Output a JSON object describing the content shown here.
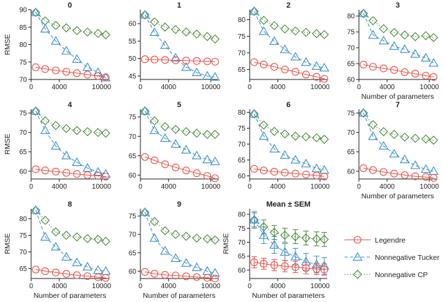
{
  "colors": {
    "legendre": "#e8534a",
    "tucker": "#3b8fc9",
    "cp": "#4a8a3a",
    "axis": "#222222"
  },
  "legend": {
    "items": [
      {
        "key": "legendre",
        "label": "Legendre",
        "marker": "circle",
        "dash": "solid"
      },
      {
        "key": "tucker",
        "label": "Nonnegative Tucker",
        "marker": "triangle",
        "dash": "dashed"
      },
      {
        "key": "cp",
        "label": "Nonnegative CP",
        "marker": "diamond",
        "dash": "dotted"
      }
    ]
  },
  "chart_data": [
    {
      "type": "line",
      "title": "0",
      "xlabel": "",
      "ylabel": "RMSE",
      "xlim": [
        0,
        11000
      ],
      "ylim": [
        70,
        90
      ],
      "xticks": [
        0,
        4000,
        10000
      ],
      "yticks": [
        70,
        75,
        80,
        85,
        90
      ],
      "x": [
        650,
        2000,
        3500,
        5000,
        6500,
        8000,
        9500,
        10600
      ],
      "series": [
        {
          "name": "Legendre",
          "values": [
            73.5,
            73.0,
            72.6,
            72.2,
            71.8,
            71.4,
            71.0,
            70.6
          ]
        },
        {
          "name": "Nonnegative Tucker",
          "values": [
            89.2,
            84.5,
            81.0,
            78.2,
            75.8,
            73.5,
            72.0,
            70.5
          ]
        },
        {
          "name": "Nonnegative CP",
          "values": [
            89.2,
            86.8,
            85.5,
            84.8,
            84.0,
            83.6,
            83.2,
            82.8
          ]
        }
      ]
    },
    {
      "type": "line",
      "title": "1",
      "xlabel": "",
      "ylabel": "",
      "xlim": [
        0,
        11000
      ],
      "ylim": [
        44,
        64
      ],
      "xticks": [
        0,
        4000,
        10000
      ],
      "yticks": [
        45,
        50,
        55,
        60
      ],
      "x": [
        650,
        2000,
        3500,
        5000,
        6500,
        8000,
        9500,
        10600
      ],
      "series": [
        {
          "name": "Legendre",
          "values": [
            49.8,
            49.7,
            49.6,
            49.5,
            49.4,
            49.3,
            49.2,
            49.1
          ]
        },
        {
          "name": "Nonnegative Tucker",
          "values": [
            62.5,
            57.5,
            53.8,
            50.2,
            47.5,
            46.0,
            45.0,
            44.7
          ]
        },
        {
          "name": "Nonnegative CP",
          "values": [
            62.5,
            60.5,
            59.0,
            58.3,
            57.6,
            57.0,
            56.3,
            55.6
          ]
        }
      ]
    },
    {
      "type": "line",
      "title": "2",
      "xlabel": "",
      "ylabel": "",
      "xlim": [
        0,
        11000
      ],
      "ylim": [
        62,
        83
      ],
      "xticks": [
        0,
        4000,
        10000
      ],
      "yticks": [
        65,
        70,
        75,
        80
      ],
      "x": [
        650,
        2000,
        3500,
        5000,
        6500,
        8000,
        9500,
        10600
      ],
      "series": [
        {
          "name": "Legendre",
          "values": [
            67.2,
            66.5,
            65.8,
            65.0,
            64.3,
            63.5,
            62.8,
            62.2
          ]
        },
        {
          "name": "Nonnegative Tucker",
          "values": [
            82.5,
            76.5,
            73.5,
            71.0,
            68.8,
            67.2,
            66.0,
            65.5
          ]
        },
        {
          "name": "Nonnegative CP",
          "values": [
            82.5,
            79.8,
            78.2,
            77.2,
            76.6,
            76.2,
            75.8,
            75.5
          ]
        }
      ]
    },
    {
      "type": "line",
      "title": "3",
      "xlabel": "Number of parameters",
      "ylabel": "",
      "xlim": [
        0,
        11000
      ],
      "ylim": [
        60,
        82
      ],
      "xticks": [
        0,
        4000,
        10000
      ],
      "yticks": [
        60,
        65,
        70,
        75,
        80
      ],
      "x": [
        650,
        2000,
        3500,
        5000,
        6500,
        8000,
        9500,
        10600
      ],
      "series": [
        {
          "name": "Legendre",
          "values": [
            64.7,
            64.0,
            63.5,
            63.0,
            62.3,
            61.8,
            61.2,
            60.8
          ]
        },
        {
          "name": "Nonnegative Tucker",
          "values": [
            80.8,
            74.0,
            72.2,
            70.5,
            69.5,
            68.0,
            66.8,
            65.2
          ]
        },
        {
          "name": "Nonnegative CP",
          "values": [
            80.8,
            78.5,
            76.0,
            74.8,
            74.0,
            73.5,
            73.8,
            73.2
          ]
        }
      ]
    },
    {
      "type": "line",
      "title": "4",
      "xlabel": "",
      "ylabel": "RMSE",
      "xlim": [
        0,
        11000
      ],
      "ylim": [
        58,
        76
      ],
      "xticks": [
        0,
        4000,
        10000
      ],
      "yticks": [
        60,
        65,
        70,
        75
      ],
      "x": [
        650,
        2000,
        3500,
        5000,
        6500,
        8000,
        9500,
        10600
      ],
      "series": [
        {
          "name": "Legendre",
          "values": [
            60.5,
            60.2,
            59.9,
            59.6,
            59.3,
            59.0,
            58.8,
            58.6
          ]
        },
        {
          "name": "Nonnegative Tucker",
          "values": [
            75.5,
            70.5,
            66.5,
            64.0,
            62.3,
            60.8,
            59.8,
            59.3
          ]
        },
        {
          "name": "Nonnegative CP",
          "values": [
            75.5,
            73.0,
            71.8,
            71.0,
            70.5,
            70.2,
            70.0,
            69.8
          ]
        }
      ]
    },
    {
      "type": "line",
      "title": "5",
      "xlabel": "",
      "ylabel": "",
      "xlim": [
        0,
        11000
      ],
      "ylim": [
        59,
        77
      ],
      "xticks": [
        0,
        4000,
        10000
      ],
      "yticks": [
        60,
        65,
        70,
        75
      ],
      "x": [
        650,
        2000,
        3500,
        5000,
        6500,
        8000,
        9500,
        10600
      ],
      "series": [
        {
          "name": "Legendre",
          "values": [
            64.7,
            63.8,
            62.8,
            62.0,
            61.2,
            60.5,
            59.8,
            59.2
          ]
        },
        {
          "name": "Nonnegative Tucker",
          "values": [
            76.5,
            71.5,
            69.5,
            68.0,
            66.5,
            65.0,
            64.0,
            63.5
          ]
        },
        {
          "name": "Nonnegative CP",
          "values": [
            76.5,
            74.0,
            72.5,
            71.8,
            71.2,
            70.8,
            70.5,
            70.5
          ]
        }
      ]
    },
    {
      "type": "line",
      "title": "6",
      "xlabel": "",
      "ylabel": "",
      "xlim": [
        0,
        11000
      ],
      "ylim": [
        59,
        81
      ],
      "xticks": [
        0,
        4000,
        10000
      ],
      "yticks": [
        60,
        65,
        70,
        75,
        80
      ],
      "x": [
        650,
        2000,
        3500,
        5000,
        6500,
        8000,
        9500,
        10600
      ],
      "series": [
        {
          "name": "Legendre",
          "values": [
            62.2,
            61.7,
            61.3,
            61.0,
            60.7,
            60.4,
            60.1,
            59.8
          ]
        },
        {
          "name": "Nonnegative Tucker",
          "values": [
            79.5,
            72.5,
            68.5,
            66.5,
            65.0,
            63.8,
            62.3,
            61.8
          ]
        },
        {
          "name": "Nonnegative CP",
          "values": [
            79.5,
            76.0,
            74.0,
            73.2,
            72.5,
            72.3,
            72.0,
            71.5
          ]
        }
      ]
    },
    {
      "type": "line",
      "title": "7",
      "xlabel": "Number of parameters",
      "ylabel": "",
      "xlim": [
        0,
        11000
      ],
      "ylim": [
        58,
        76
      ],
      "xticks": [
        0,
        4000,
        10000
      ],
      "yticks": [
        60,
        65,
        70,
        75
      ],
      "x": [
        650,
        2000,
        3500,
        5000,
        6500,
        8000,
        9500,
        10600
      ],
      "series": [
        {
          "name": "Legendre",
          "values": [
            60.8,
            60.3,
            59.8,
            59.4,
            59.0,
            58.7,
            58.5,
            58.3
          ]
        },
        {
          "name": "Nonnegative Tucker",
          "values": [
            75.0,
            69.0,
            66.5,
            64.5,
            63.0,
            61.5,
            60.5,
            60.0
          ]
        },
        {
          "name": "Nonnegative CP",
          "values": [
            75.0,
            72.0,
            70.2,
            69.5,
            68.8,
            68.5,
            68.3,
            68.0
          ]
        }
      ]
    },
    {
      "type": "line",
      "title": "8",
      "xlabel": "Number of parameters",
      "ylabel": "RMSE",
      "xlim": [
        0,
        11000
      ],
      "ylim": [
        62,
        83
      ],
      "xticks": [
        0,
        4000,
        10000
      ],
      "yticks": [
        65,
        70,
        75,
        80
      ],
      "x": [
        650,
        2000,
        3500,
        5000,
        6500,
        8000,
        9500,
        10600
      ],
      "series": [
        {
          "name": "Legendre",
          "values": [
            64.7,
            64.2,
            63.8,
            63.4,
            63.0,
            62.7,
            62.4,
            62.2
          ]
        },
        {
          "name": "Nonnegative Tucker",
          "values": [
            82.5,
            74.5,
            71.5,
            68.5,
            66.8,
            65.5,
            64.5,
            64.2
          ]
        },
        {
          "name": "Nonnegative CP",
          "values": [
            82.5,
            79.5,
            76.0,
            75.0,
            74.5,
            74.0,
            73.8,
            73.2
          ]
        }
      ]
    },
    {
      "type": "line",
      "title": "9",
      "xlabel": "Number of parameters",
      "ylabel": "",
      "xlim": [
        0,
        11000
      ],
      "ylim": [
        58,
        77
      ],
      "xticks": [
        0,
        4000,
        10000
      ],
      "yticks": [
        60,
        65,
        70,
        75
      ],
      "x": [
        650,
        2000,
        3500,
        5000,
        6500,
        8000,
        9500,
        10600
      ],
      "series": [
        {
          "name": "Legendre",
          "values": [
            59.8,
            59.3,
            59.0,
            58.8,
            58.6,
            58.4,
            58.2,
            58.0
          ]
        },
        {
          "name": "Nonnegative Tucker",
          "values": [
            76.0,
            69.0,
            65.5,
            63.5,
            62.2,
            61.0,
            60.0,
            59.5
          ]
        },
        {
          "name": "Nonnegative CP",
          "values": [
            76.0,
            73.5,
            71.0,
            70.0,
            69.5,
            69.0,
            68.8,
            68.5
          ]
        }
      ]
    },
    {
      "type": "line",
      "title": "Mean ± SEM",
      "xlabel": "Number of parameters",
      "ylabel": "RMSE",
      "xlim": [
        0,
        11000
      ],
      "ylim": [
        57,
        82
      ],
      "xticks": [
        0,
        4000,
        10000
      ],
      "yticks": [
        60,
        65,
        70,
        75,
        80
      ],
      "x": [
        650,
        2000,
        3500,
        5000,
        6500,
        8000,
        9500,
        10600
      ],
      "series": [
        {
          "name": "Legendre",
          "values": [
            62.8,
            62.3,
            61.8,
            61.4,
            61.1,
            60.7,
            60.4,
            60.2
          ],
          "sem": [
            2.0,
            2.0,
            2.0,
            2.0,
            2.0,
            2.0,
            2.0,
            2.0
          ]
        },
        {
          "name": "Nonnegative Tucker",
          "values": [
            78.0,
            72.5,
            69.0,
            66.5,
            64.8,
            63.0,
            62.0,
            61.5
          ],
          "sem": [
            3.0,
            3.0,
            3.0,
            3.0,
            3.0,
            3.0,
            3.0,
            3.0
          ]
        },
        {
          "name": "Nonnegative CP",
          "values": [
            78.0,
            75.5,
            73.5,
            72.5,
            72.0,
            71.5,
            71.2,
            71.0
          ],
          "sem": [
            2.5,
            2.5,
            2.5,
            2.5,
            2.5,
            2.5,
            2.5,
            2.5
          ]
        }
      ]
    }
  ]
}
